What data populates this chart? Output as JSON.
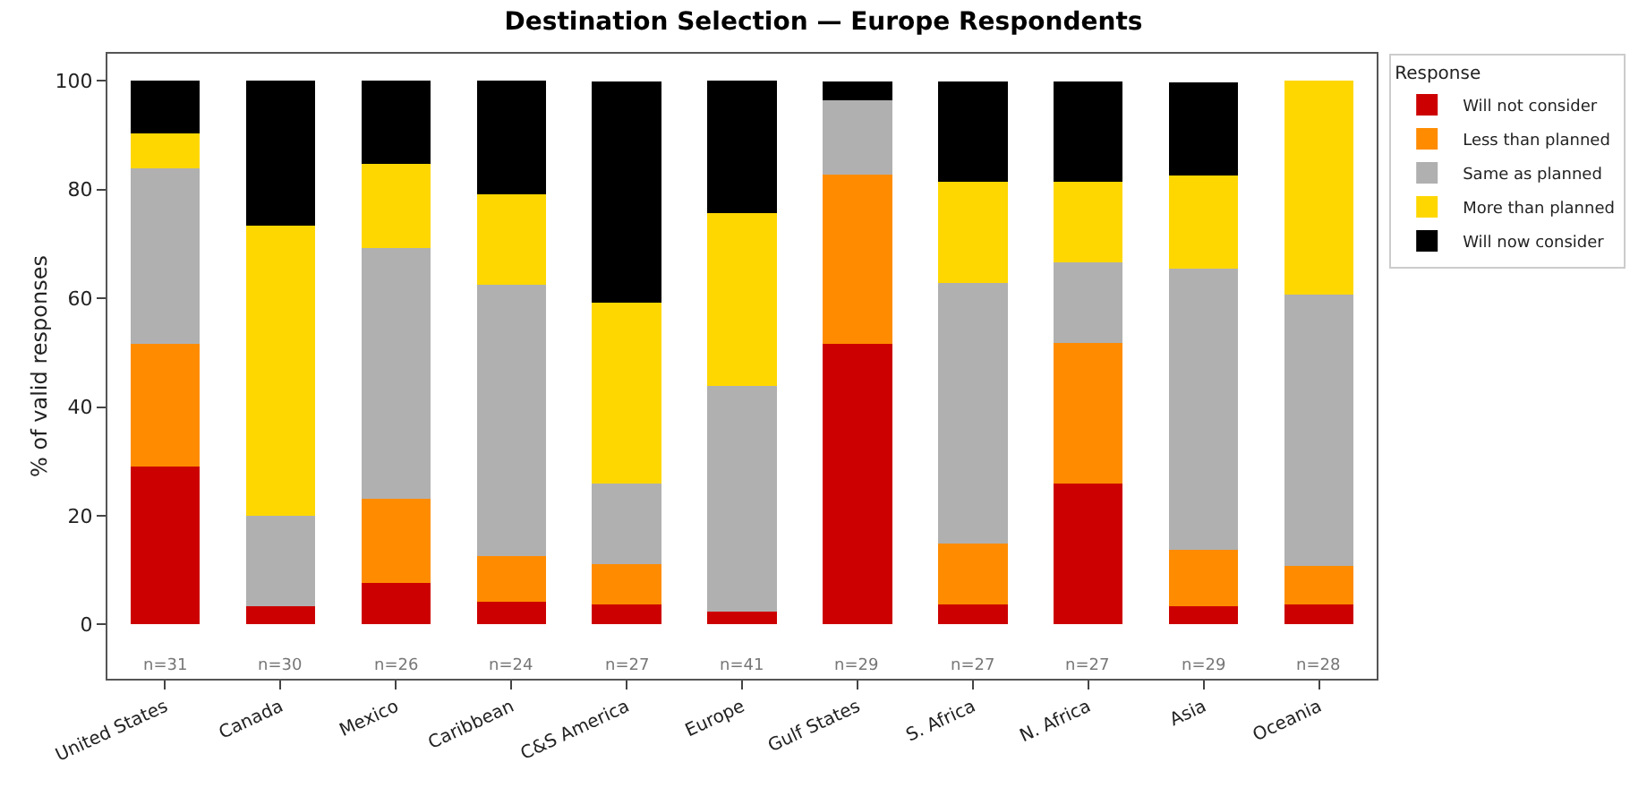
{
  "chart_data": {
    "type": "bar",
    "stacked": true,
    "title": "Destination Selection — Europe Respondents",
    "ylabel": "% of valid responses",
    "legend_title": "Response",
    "legend": "top right",
    "grid": false,
    "categories": [
      "United States",
      "Canada",
      "Mexico",
      "Caribbean",
      "C&S America",
      "Europe",
      "Gulf States",
      "S. Africa",
      "N. Africa",
      "Asia",
      "Oceania"
    ],
    "ylim": [
      -10,
      105
    ],
    "yticks": [
      0,
      20,
      40,
      60,
      80,
      100
    ],
    "series": [
      {
        "name": "Will not consider",
        "color": "#cc0000",
        "values": [
          29.0,
          3.3,
          7.7,
          4.2,
          3.7,
          2.4,
          51.7,
          3.7,
          25.9,
          3.4,
          3.6
        ]
      },
      {
        "name": "Less than planned",
        "color": "#ff8c00",
        "values": [
          22.6,
          0,
          15.4,
          8.3,
          7.4,
          0,
          31.0,
          11.1,
          25.9,
          10.3,
          7.1
        ]
      },
      {
        "name": "Same as planned",
        "color": "#b0b0b0",
        "values": [
          32.3,
          16.7,
          46.2,
          50.0,
          14.8,
          41.5,
          13.8,
          48.1,
          14.8,
          51.7,
          50.0
        ]
      },
      {
        "name": "More than planned",
        "color": "#ffd700",
        "values": [
          6.5,
          53.3,
          15.4,
          16.7,
          33.3,
          31.7,
          0,
          18.5,
          14.8,
          17.2,
          39.3
        ]
      },
      {
        "name": "Will now consider",
        "color": "#000000",
        "values": [
          9.7,
          26.7,
          15.4,
          20.8,
          40.7,
          24.4,
          3.4,
          18.5,
          18.5,
          17.2,
          0
        ]
      }
    ],
    "annotations": [
      "n=31",
      "n=30",
      "n=26",
      "n=24",
      "n=27",
      "n=41",
      "n=29",
      "n=27",
      "n=27",
      "n=29",
      "n=28"
    ]
  }
}
